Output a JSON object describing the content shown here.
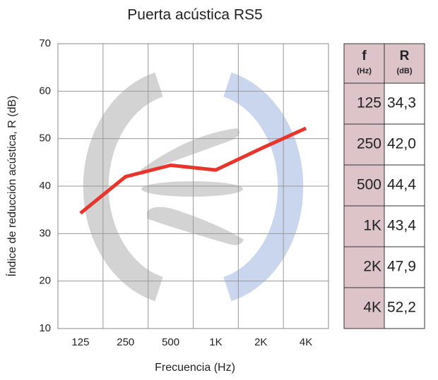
{
  "chart_data": {
    "type": "line",
    "title": "Puerta acústica RS5",
    "x_label": "Frecuencia (Hz)",
    "y_label": "Índice de reducción acústica, R (dB)",
    "categories": [
      "125",
      "250",
      "500",
      "1K",
      "2K",
      "4K"
    ],
    "values": [
      34.3,
      42.0,
      44.4,
      43.4,
      47.9,
      52.2
    ],
    "value_labels": [
      "34,3",
      "42,0",
      "44,4",
      "43,4",
      "47,9",
      "52,2"
    ],
    "color": "#e8352b",
    "ylim": [
      10,
      70
    ],
    "yticks": [
      10,
      20,
      30,
      40,
      50,
      60,
      70
    ],
    "grid": true
  },
  "table": {
    "f_header": "f",
    "f_unit": "(Hz)",
    "r_header": "R",
    "r_unit": "(dB)"
  }
}
